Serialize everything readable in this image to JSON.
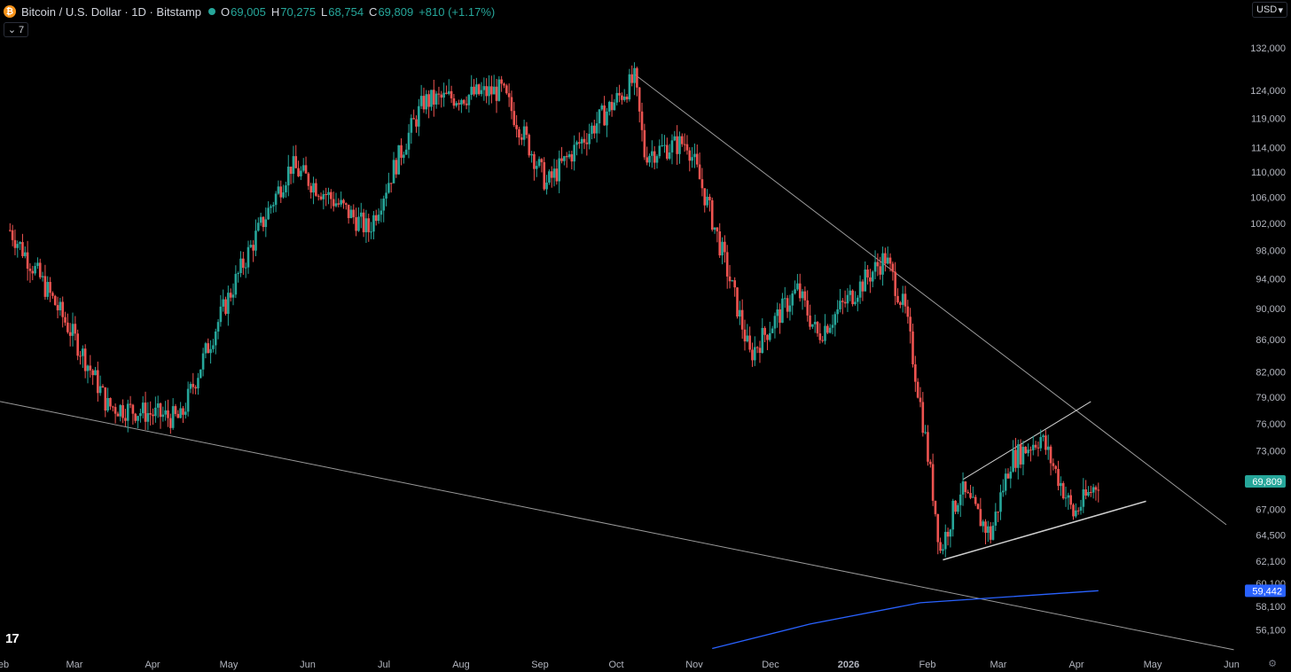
{
  "header": {
    "symbol": "Bitcoin / U.S. Dollar · 1D · Bitstamp",
    "logo_glyph": "₿",
    "o_label": "O",
    "o_value": "69,005",
    "h_label": "H",
    "h_value": "70,275",
    "l_label": "L",
    "l_value": "68,754",
    "c_label": "C",
    "c_value": "69,809",
    "change": "+810 (+1.17%)"
  },
  "indicators_toggle": {
    "count": "7"
  },
  "currency": {
    "label": "USD"
  },
  "branding": {
    "logo_text": "17"
  },
  "colors": {
    "up": "#26a69a",
    "down": "#ef5350",
    "ma": "#2962ff",
    "last": "#26a69a"
  },
  "chart_data": {
    "type": "candlestick",
    "x_tick_labels": [
      "eb",
      "Mar",
      "Apr",
      "May",
      "Jun",
      "Jul",
      "Aug",
      "Sep",
      "Oct",
      "Nov",
      "Dec",
      "2026",
      "Feb",
      "Mar",
      "Apr",
      "May",
      "Jun"
    ],
    "y_tick_labels": [
      132000,
      124000,
      119000,
      114000,
      110000,
      106000,
      102000,
      98000,
      94000,
      90000,
      86000,
      82000,
      79000,
      76000,
      73000,
      67000,
      64500,
      62100,
      60100,
      58100,
      56100
    ],
    "y_tick_text": [
      "132,000",
      "124,000",
      "119,000",
      "114,000",
      "110,000",
      "106,000",
      "102,000",
      "98,000",
      "94,000",
      "90,000",
      "86,000",
      "82,000",
      "79,000",
      "76,000",
      "73,000",
      "67,000",
      "64,500",
      "62,100",
      "60,100",
      "58,100",
      "56,100"
    ],
    "ylim": [
      54000,
      138000
    ],
    "x_range": [
      "2025-01-26",
      "2026-06-05"
    ],
    "last_price": {
      "value": 69809,
      "label": "69,809"
    },
    "ma_price": {
      "value": 59442,
      "label": "59,442"
    },
    "key_points": [
      {
        "date": "2025-01-30",
        "price": 101000
      },
      {
        "date": "2025-02-25",
        "price": 86000
      },
      {
        "date": "2025-03-10",
        "price": 78000
      },
      {
        "date": "2025-04-08",
        "price": 76500
      },
      {
        "date": "2025-05-22",
        "price": 111000
      },
      {
        "date": "2025-06-22",
        "price": 101000
      },
      {
        "date": "2025-07-14",
        "price": 122000
      },
      {
        "date": "2025-08-14",
        "price": 124000
      },
      {
        "date": "2025-09-01",
        "price": 108000
      },
      {
        "date": "2025-10-06",
        "price": 126000
      },
      {
        "date": "2025-10-10",
        "price": 113000
      },
      {
        "date": "2025-10-27",
        "price": 115000
      },
      {
        "date": "2025-11-21",
        "price": 84000
      },
      {
        "date": "2025-12-10",
        "price": 92500
      },
      {
        "date": "2025-12-18",
        "price": 86500
      },
      {
        "date": "2026-01-14",
        "price": 97000
      },
      {
        "date": "2026-01-22",
        "price": 89500
      },
      {
        "date": "2026-02-05",
        "price": 63000
      },
      {
        "date": "2026-02-13",
        "price": 69000
      },
      {
        "date": "2026-02-25",
        "price": 64500
      },
      {
        "date": "2026-03-05",
        "price": 72000
      },
      {
        "date": "2026-03-17",
        "price": 74500
      },
      {
        "date": "2026-03-30",
        "price": 66500
      },
      {
        "date": "2026-04-09",
        "price": 69809
      }
    ],
    "trendlines": [
      {
        "name": "",
        "from": {
          "date": "2025-10-06",
          "price": 127000
        },
        "to": {
          "date": "2026-05-30",
          "price": 65500
        }
      },
      {
        "name": "",
        "from": {
          "date": "2025-01-26",
          "price": 78500
        },
        "to": {
          "date": "2026-06-02",
          "price": 54500
        }
      },
      {
        "name": "",
        "from": {
          "date": "2026-02-06",
          "price": 62200
        },
        "to": {
          "date": "2026-04-28",
          "price": 67800
        }
      },
      {
        "name": "",
        "from": {
          "date": "2026-02-14",
          "price": 70000
        },
        "to": {
          "date": "2026-04-06",
          "price": 78500
        }
      }
    ],
    "ma_line": [
      {
        "date": "2025-11-06",
        "price": 54600
      },
      {
        "date": "2025-12-15",
        "price": 56600
      },
      {
        "date": "2026-01-28",
        "price": 58400
      },
      {
        "date": "2026-04-09",
        "price": 59442
      }
    ]
  }
}
